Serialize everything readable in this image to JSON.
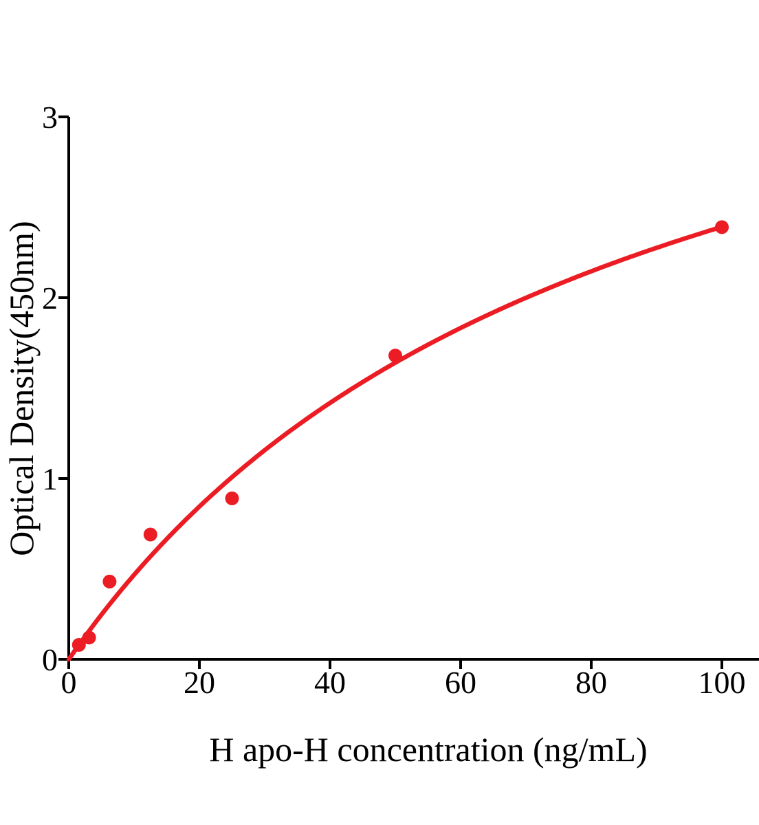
{
  "chart_data": {
    "type": "scatter",
    "title": "",
    "xlabel": "H apo-H concentration (ng/mL)",
    "ylabel": "Optical Density(450nm)",
    "x_unit": "ng/mL",
    "y_unit": "OD450",
    "xlim": [
      0,
      105.7
    ],
    "ylim": [
      0,
      3
    ],
    "xticks": [
      0,
      20,
      40,
      60,
      80,
      100
    ],
    "yticks": [
      0,
      1,
      2,
      3
    ],
    "grid": false,
    "legend": "none",
    "points": [
      {
        "x": 1.56,
        "y": 0.08
      },
      {
        "x": 3.12,
        "y": 0.12
      },
      {
        "x": 6.25,
        "y": 0.43
      },
      {
        "x": 12.5,
        "y": 0.69
      },
      {
        "x": 25,
        "y": 0.89
      },
      {
        "x": 50,
        "y": 1.68
      },
      {
        "x": 100,
        "y": 2.39
      }
    ],
    "fit_curve": {
      "model": "saturation (y = vmax*x / (km + x))",
      "vmax": 4.41,
      "km": 84.4,
      "x_start": 0,
      "x_end": 100.3
    },
    "marker_color": "#EC1C24",
    "line_color": "#EC1C24",
    "axis_color": "#000000"
  }
}
